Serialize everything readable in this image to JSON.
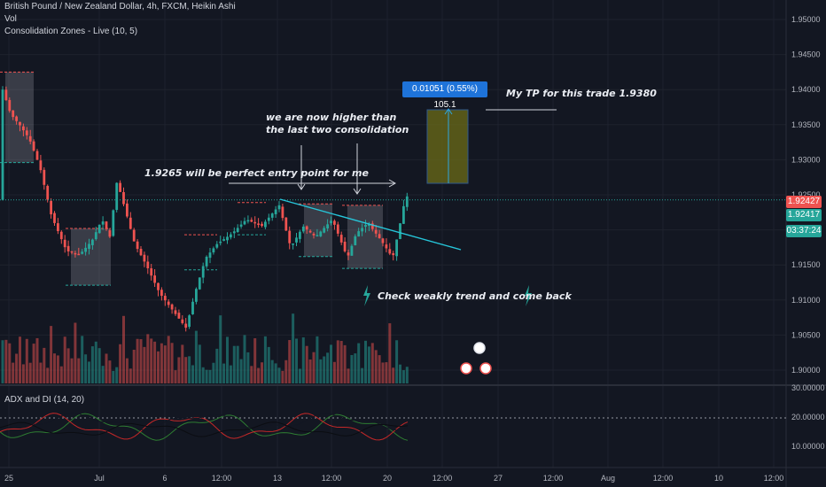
{
  "legend": {
    "symbol": "British Pound / New Zealand Dollar, 4h, FXCM, Heikin Ashi",
    "vol": "Vol",
    "indicator": "Consolidation Zones - Live (10, 5)",
    "adx": "ADX and DI (14, 20)"
  },
  "price_tags": {
    "current": "1.92427",
    "secondary": "1.92417",
    "countdown": "03:37:24",
    "colors": {
      "current": "#ef5350",
      "secondary": "#26a69a",
      "countdown": "#26a69a"
    }
  },
  "annotations": {
    "entry": "1.9265 will be perfect entry point for me",
    "higher_line1": "we are now higher than",
    "higher_line2": "the last two consolidation",
    "check": "Check weakly trend and come back",
    "tp": "My TP for this trade 1.9380",
    "measure": "0.01051 (0.55%) 105.1"
  },
  "chart_data": {
    "type": "candlestick",
    "price_axis": [
      "1.95000",
      "1.94500",
      "1.94000",
      "1.93500",
      "1.93000",
      "1.92500",
      "1.92000",
      "1.91500",
      "1.91000",
      "1.90500",
      "1.90000"
    ],
    "adx_axis": [
      "30.00000",
      "20.00000",
      "10.00000"
    ],
    "time_axis": [
      "25",
      "Jul",
      "6",
      "12:00",
      "13",
      "12:00",
      "20",
      "12:00",
      "27",
      "12:00",
      "Aug",
      "12:00",
      "10",
      "12:00"
    ],
    "current_price": 1.92427,
    "tp_price": 1.938,
    "colors": {
      "up": "#26a69a",
      "down": "#ef5350",
      "trend_line": "#26c6da",
      "target_box": "#6b6b17",
      "measure": "#1e73d9"
    }
  }
}
